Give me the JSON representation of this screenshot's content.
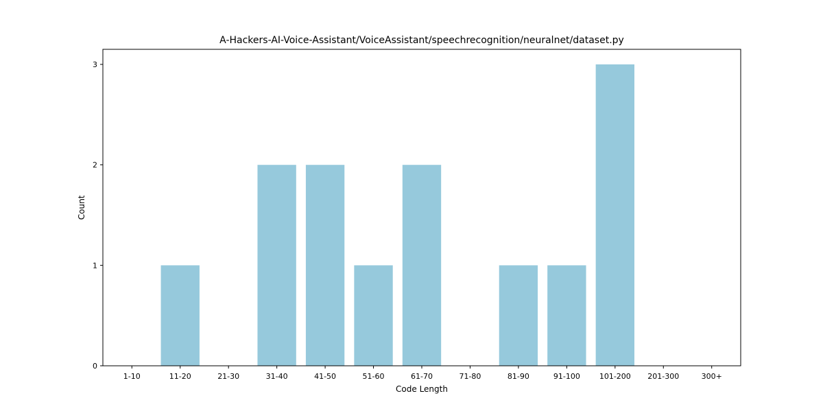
{
  "chart_data": {
    "type": "bar",
    "title": "A-Hackers-AI-Voice-Assistant/VoiceAssistant/speechrecognition/neuralnet/dataset.py",
    "xlabel": "Code Length",
    "ylabel": "Count",
    "categories": [
      "1-10",
      "11-20",
      "21-30",
      "31-40",
      "41-50",
      "51-60",
      "61-70",
      "71-80",
      "81-90",
      "91-100",
      "101-200",
      "201-300",
      "300+"
    ],
    "values": [
      0,
      1,
      0,
      2,
      2,
      1,
      2,
      0,
      1,
      1,
      3,
      0,
      0
    ],
    "yticks": [
      0,
      1,
      2,
      3
    ],
    "ylim": [
      0,
      3.15
    ],
    "bar_color": "#96c9dc",
    "grid": false,
    "legend": "none"
  }
}
